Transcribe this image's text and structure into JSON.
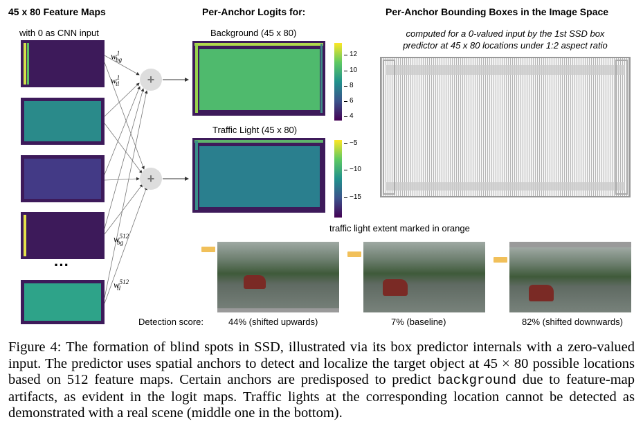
{
  "figure": {
    "col1": {
      "title": "45 x 80 Feature Maps",
      "subtitle": "with 0 as CNN input",
      "ellipsis": "···"
    },
    "col2": {
      "title": "Per-Anchor Logits for:",
      "bg_label": "Background  (45 x 80)",
      "tl_label": "Traffic Light (45 x 80)",
      "bg_ticks": [
        "12",
        "10",
        "8",
        "6",
        "4"
      ],
      "tl_ticks": [
        "−5",
        "−10",
        "−15"
      ]
    },
    "col3": {
      "title": "Per-Anchor Bounding Boxes in the Image Space",
      "subtitle_line1": "computed for a 0-valued input by the 1st SSD box",
      "subtitle_line2": "predictor at 45 x 80 locations under 1:2 aspect ratio"
    },
    "weights": {
      "w_bg_1": {
        "base": "w",
        "sup": "1",
        "sub": "bg"
      },
      "w_tl_1": {
        "base": "w",
        "sup": "1",
        "sub": "tl"
      },
      "w_bg_512": {
        "base": "w",
        "sup": "512",
        "sub": "bg"
      },
      "w_tl_512": {
        "base": "w",
        "sup": "512",
        "sub": "tl"
      }
    },
    "plus_symbol": "+",
    "scene": {
      "header": "traffic light extent marked in orange",
      "detection_label": "Detection score:",
      "scores": [
        "44% (shifted upwards)",
        "7% (baseline)",
        "82% (shifted downwards)"
      ]
    },
    "colors": {
      "orange_marker": "#f1c05a",
      "viridis_yellow": "#fde725",
      "viridis_purple": "#440154"
    }
  },
  "caption": {
    "label": "Figure 4:",
    "part1": "The formation of blind spots in SSD, illustrated via its box predictor internals with a zero-valued input.  The predictor uses spatial anchors to detect and localize the target object at",
    "math": "45 × 80",
    "part2": "possible locations based on 512 feature maps. Certain anchors are predisposed to predict",
    "code": "background",
    "part3": "due to feature-map artifacts, as evident in the logit maps. Traffic lights at the corresponding location cannot be detected as demonstrated with a real scene (middle one in the bottom)."
  }
}
